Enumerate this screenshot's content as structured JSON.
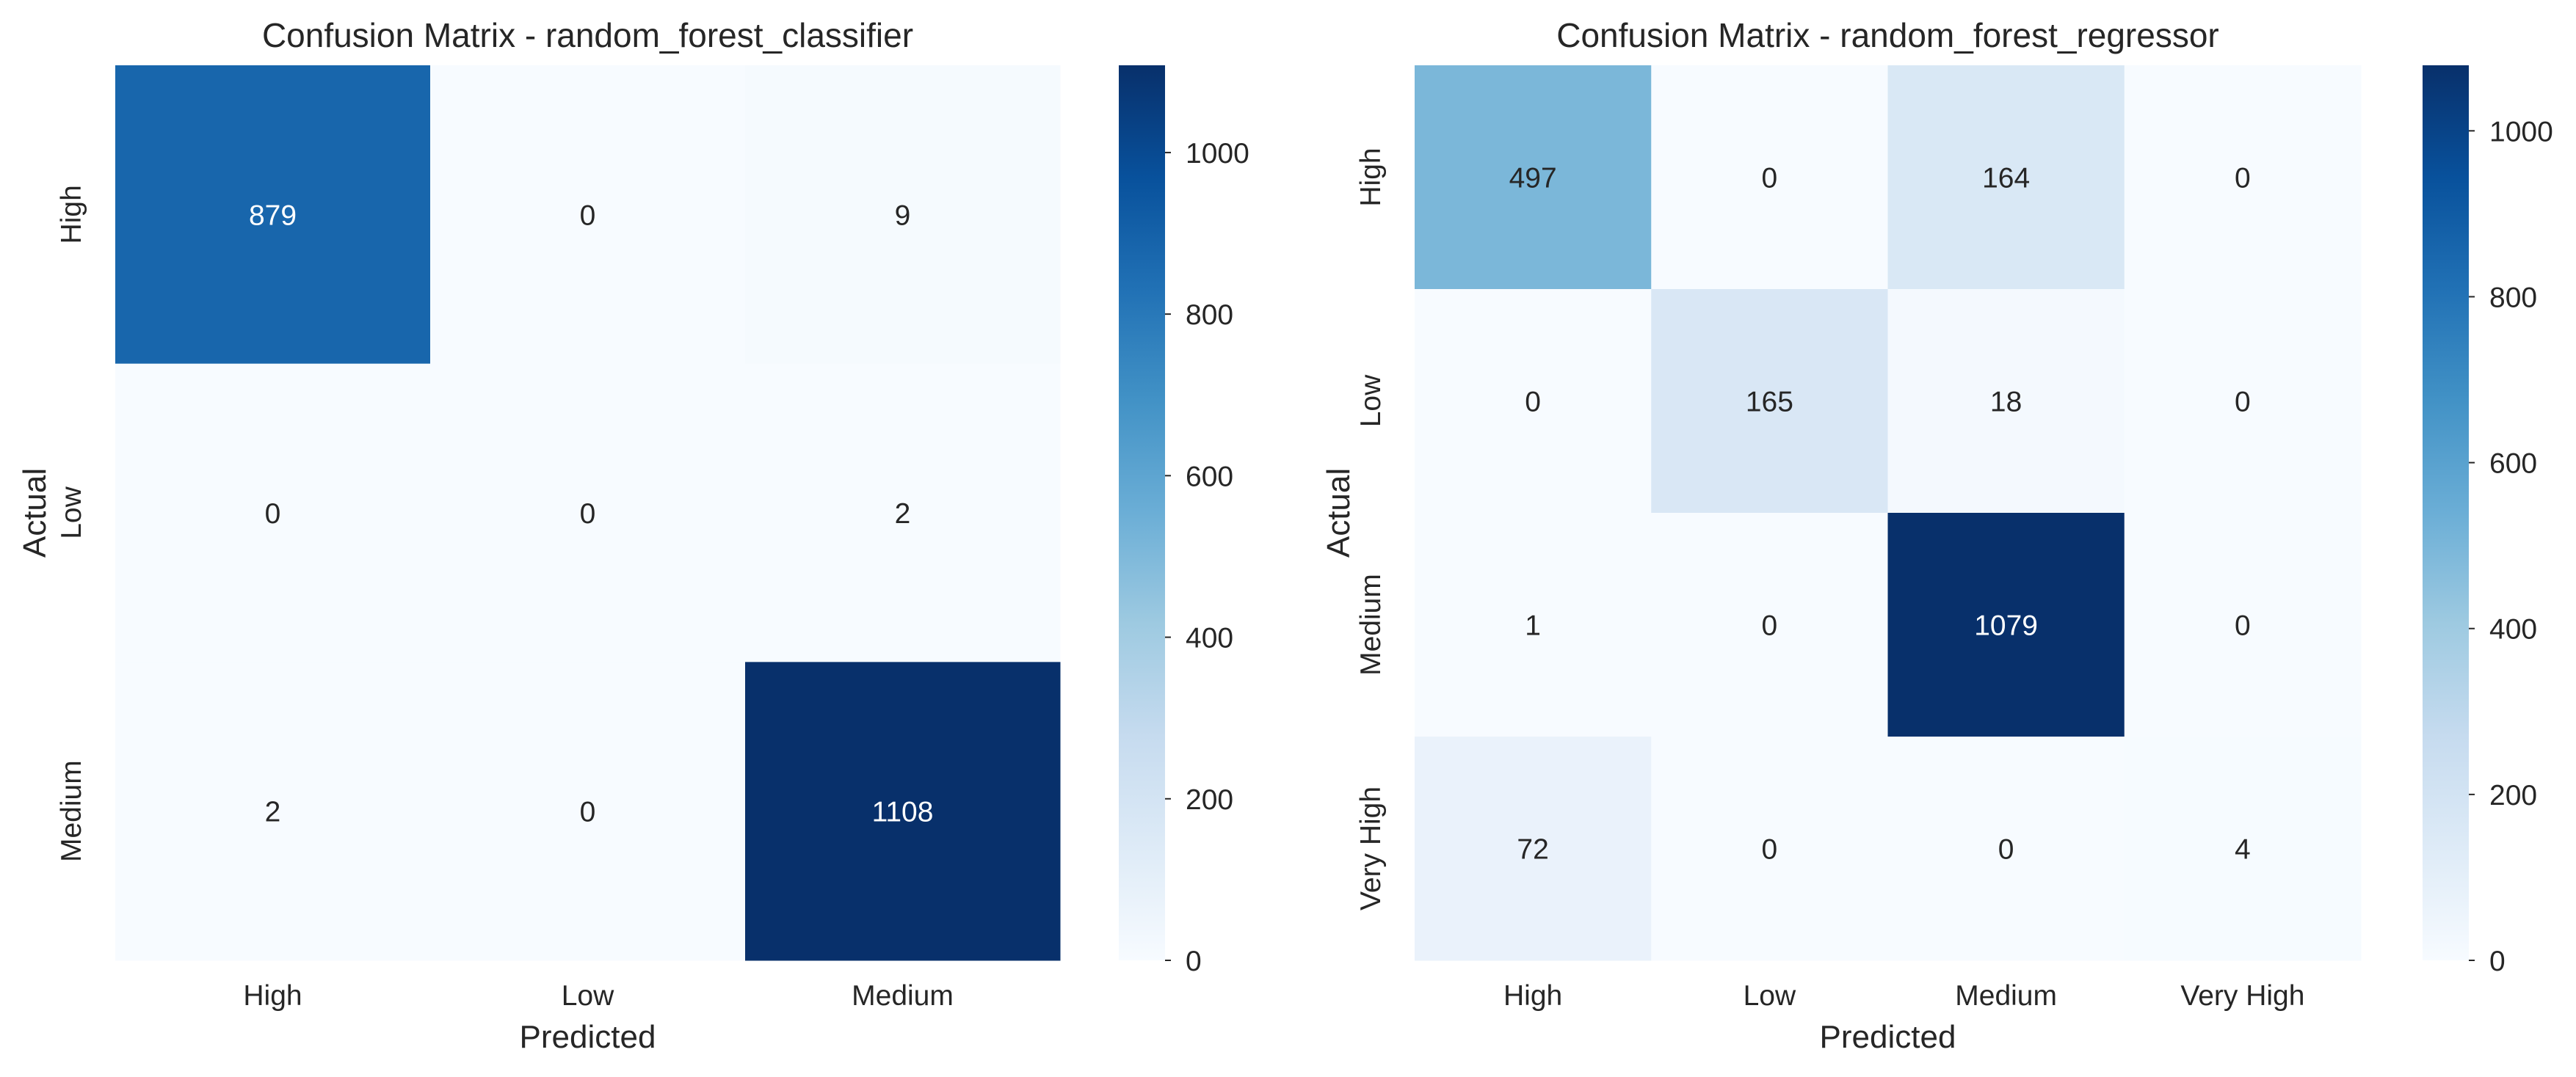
{
  "chart_data": [
    {
      "type": "heatmap",
      "title": "Confusion Matrix - random_forest_classifier",
      "xlabel": "Predicted",
      "ylabel": "Actual",
      "x_categories": [
        "High",
        "Low",
        "Medium"
      ],
      "y_categories": [
        "High",
        "Low",
        "Medium"
      ],
      "values": [
        [
          879,
          0,
          9
        ],
        [
          0,
          0,
          2
        ],
        [
          2,
          0,
          1108
        ]
      ],
      "colorbar": {
        "min": 0,
        "max": 1108,
        "ticks": [
          0,
          200,
          400,
          600,
          800,
          1000
        ]
      },
      "colormap": "Blues"
    },
    {
      "type": "heatmap",
      "title": "Confusion Matrix - random_forest_regressor",
      "xlabel": "Predicted",
      "ylabel": "Actual",
      "x_categories": [
        "High",
        "Low",
        "Medium",
        "Very High"
      ],
      "y_categories": [
        "High",
        "Low",
        "Medium",
        "Very High"
      ],
      "values": [
        [
          497,
          0,
          164,
          0
        ],
        [
          0,
          165,
          18,
          0
        ],
        [
          1,
          0,
          1079,
          0
        ],
        [
          72,
          0,
          0,
          4
        ]
      ],
      "colorbar": {
        "min": 0,
        "max": 1079,
        "ticks": [
          0,
          200,
          400,
          600,
          800,
          1000
        ]
      },
      "colormap": "Blues"
    }
  ]
}
